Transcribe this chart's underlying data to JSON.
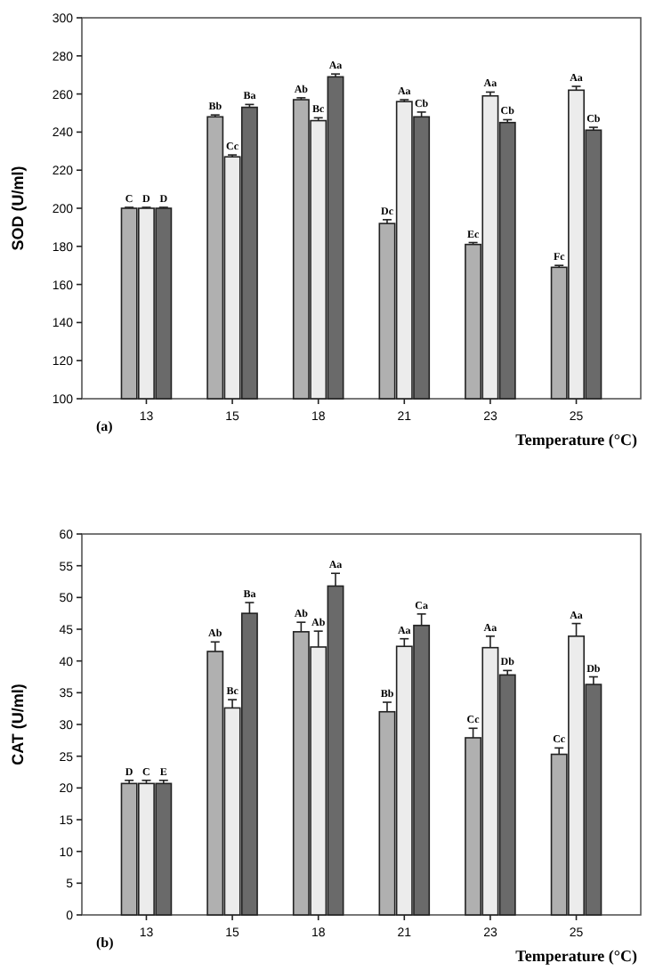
{
  "chart_data": [
    {
      "type": "bar",
      "xlabel": "Temperature (°C)",
      "ylabel": "SOD (U/ml)",
      "annotations": [
        "(a)"
      ],
      "categories": [
        "13",
        "15",
        "18",
        "21",
        "23",
        "25"
      ],
      "ylim": [
        100,
        300
      ],
      "yticks": [
        100,
        120,
        140,
        160,
        180,
        200,
        220,
        240,
        260,
        280,
        300
      ],
      "series": [
        {
          "color": "#b0b0b0",
          "values": [
            200,
            248,
            257,
            192,
            181,
            169
          ],
          "errors": [
            0.5,
            1,
            1,
            2,
            1,
            1
          ],
          "value_labels": [
            "C",
            "Bb",
            "Ab",
            "Dc",
            "Ec",
            "Fc"
          ]
        },
        {
          "color": "#ececec",
          "values": [
            200,
            227,
            246,
            256,
            259,
            262
          ],
          "errors": [
            0.5,
            1,
            1.5,
            1,
            2,
            2
          ],
          "value_labels": [
            "D",
            "Cc",
            "Bc",
            "Aa",
            "Aa",
            "Aa"
          ]
        },
        {
          "color": "#6a6a6a",
          "values": [
            200,
            253,
            269,
            248,
            245,
            241
          ],
          "errors": [
            0.5,
            1.5,
            1.5,
            2.5,
            1.5,
            1.5
          ],
          "value_labels": [
            "D",
            "Ba",
            "Aa",
            "Cb",
            "Cb",
            "Cb"
          ]
        }
      ]
    },
    {
      "type": "bar",
      "xlabel": "Temperature (°C)",
      "ylabel": "CAT (U/ml)",
      "annotations": [
        "(b)"
      ],
      "categories": [
        "13",
        "15",
        "18",
        "21",
        "23",
        "25"
      ],
      "ylim": [
        0,
        60
      ],
      "yticks": [
        0,
        5,
        10,
        15,
        20,
        25,
        30,
        35,
        40,
        45,
        50,
        55,
        60
      ],
      "series": [
        {
          "color": "#b0b0b0",
          "values": [
            20.7,
            41.5,
            44.6,
            32,
            27.9,
            25.3
          ],
          "errors": [
            0.5,
            1.5,
            1.5,
            1.5,
            1.5,
            1
          ],
          "value_labels": [
            "D",
            "Ab",
            "Ab",
            "Bb",
            "Cc",
            "Cc"
          ]
        },
        {
          "color": "#ececec",
          "values": [
            20.7,
            32.6,
            42.2,
            42.3,
            42.1,
            43.9
          ],
          "errors": [
            0.5,
            1.3,
            2.5,
            1.2,
            1.8,
            2
          ],
          "value_labels": [
            "C",
            "Bc",
            "Ab",
            "Aa",
            "Aa",
            "Aa"
          ]
        },
        {
          "color": "#6a6a6a",
          "values": [
            20.7,
            47.5,
            51.8,
            45.6,
            37.8,
            36.3
          ],
          "errors": [
            0.5,
            1.7,
            2,
            1.8,
            0.7,
            1.2
          ],
          "value_labels": [
            "E",
            "Ba",
            "Aa",
            "Ca",
            "Db",
            "Db"
          ]
        }
      ]
    }
  ]
}
